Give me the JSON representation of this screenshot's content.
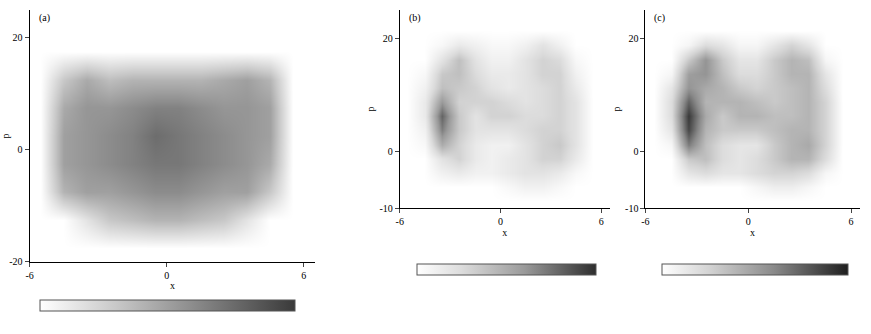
{
  "chart_data": [
    {
      "type": "heatmap",
      "title": "(a)",
      "x_label": "x",
      "y_label": "p",
      "x": [
        -5.5,
        -4.5,
        -3.5,
        -2.5,
        -1.5,
        -0.5,
        0.5,
        1.5,
        2.5,
        3.5,
        4.5,
        5.5
      ],
      "y": [
        -17.5,
        -12.5,
        -7.5,
        -2.5,
        2.5,
        7.5,
        12.5,
        17.5,
        22.5
      ],
      "z": [
        [
          0,
          0,
          0,
          0,
          0,
          0,
          0,
          0,
          0,
          0,
          0,
          0
        ],
        [
          0,
          0,
          0.15,
          0.3,
          0.35,
          0.4,
          0.4,
          0.35,
          0.3,
          0.15,
          0,
          0
        ],
        [
          0,
          0.4,
          0.5,
          0.5,
          0.55,
          0.6,
          0.6,
          0.55,
          0.5,
          0.5,
          0.3,
          0
        ],
        [
          0,
          0.5,
          0.55,
          0.6,
          0.65,
          0.7,
          0.7,
          0.65,
          0.6,
          0.55,
          0.45,
          0
        ],
        [
          0,
          0.5,
          0.55,
          0.6,
          0.65,
          0.75,
          0.7,
          0.65,
          0.6,
          0.55,
          0.5,
          0
        ],
        [
          0,
          0.45,
          0.55,
          0.55,
          0.6,
          0.65,
          0.65,
          0.6,
          0.55,
          0.55,
          0.5,
          0
        ],
        [
          0,
          0.3,
          0.45,
          0.35,
          0.4,
          0.4,
          0.4,
          0.4,
          0.45,
          0.5,
          0.4,
          0
        ],
        [
          0,
          0,
          0,
          0,
          0,
          0,
          0,
          0,
          0,
          0,
          0,
          0
        ],
        [
          0,
          0,
          0,
          0,
          0,
          0,
          0,
          0,
          0,
          0,
          0,
          0
        ]
      ],
      "xlim": [
        -6,
        6.5
      ],
      "ylim": [
        -20,
        25
      ],
      "xticks": [
        -6,
        0,
        6
      ],
      "yticks": [
        -20,
        0,
        20
      ],
      "zlim": [
        0,
        1
      ]
    },
    {
      "type": "heatmap",
      "title": "(b)",
      "x_label": "x",
      "y_label": "p",
      "x": [
        -5.5,
        -4.5,
        -3.5,
        -2.5,
        -1.5,
        -0.5,
        0.5,
        1.5,
        2.5,
        3.5,
        4.5,
        5.5
      ],
      "y": [
        -8.75,
        -6.25,
        -3.75,
        -1.25,
        1.25,
        3.75,
        6.25,
        8.75,
        11.25,
        13.75,
        16.25,
        18.75,
        21.25,
        23.75
      ],
      "z": [
        [
          0,
          0,
          0,
          0,
          0,
          0,
          0,
          0,
          0,
          0,
          0,
          0
        ],
        [
          0,
          0,
          0,
          0,
          0,
          0,
          0.05,
          0.1,
          0.1,
          0.05,
          0,
          0
        ],
        [
          0,
          0,
          0.1,
          0.15,
          0.1,
          0.1,
          0.15,
          0.2,
          0.2,
          0.15,
          0.05,
          0
        ],
        [
          0,
          0,
          0.2,
          0.3,
          0.15,
          0.1,
          0.15,
          0.2,
          0.3,
          0.3,
          0.15,
          0
        ],
        [
          0,
          0.05,
          0.5,
          0.3,
          0.15,
          0.1,
          0.1,
          0.2,
          0.3,
          0.35,
          0.2,
          0
        ],
        [
          0,
          0.1,
          0.7,
          0.35,
          0.2,
          0.2,
          0.2,
          0.25,
          0.3,
          0.3,
          0.2,
          0
        ],
        [
          0,
          0.15,
          0.8,
          0.35,
          0.2,
          0.3,
          0.3,
          0.25,
          0.25,
          0.3,
          0.2,
          0
        ],
        [
          0,
          0.15,
          0.6,
          0.3,
          0.3,
          0.3,
          0.25,
          0.2,
          0.25,
          0.3,
          0.2,
          0
        ],
        [
          0,
          0.1,
          0.4,
          0.35,
          0.3,
          0.2,
          0.15,
          0.2,
          0.25,
          0.3,
          0.15,
          0
        ],
        [
          0,
          0.05,
          0.35,
          0.4,
          0.25,
          0.15,
          0.15,
          0.2,
          0.3,
          0.3,
          0.1,
          0
        ],
        [
          0,
          0,
          0.2,
          0.4,
          0.2,
          0.1,
          0.1,
          0.2,
          0.3,
          0.25,
          0.05,
          0
        ],
        [
          0,
          0,
          0.05,
          0.15,
          0.1,
          0.05,
          0.05,
          0.1,
          0.2,
          0.1,
          0,
          0
        ],
        [
          0,
          0,
          0,
          0,
          0,
          0,
          0,
          0,
          0,
          0,
          0,
          0
        ],
        [
          0,
          0,
          0,
          0,
          0,
          0,
          0,
          0,
          0,
          0,
          0,
          0
        ]
      ],
      "xlim": [
        -6,
        6.5
      ],
      "ylim": [
        -10,
        25
      ],
      "xticks": [
        -6,
        0,
        6
      ],
      "yticks": [
        -10,
        0,
        20
      ],
      "zlim": [
        0,
        1
      ]
    },
    {
      "type": "heatmap",
      "title": "(c)",
      "x_label": "x",
      "y_label": "p",
      "x": [
        -5.5,
        -4.5,
        -3.5,
        -2.5,
        -1.5,
        -0.5,
        0.5,
        1.5,
        2.5,
        3.5,
        4.5,
        5.5
      ],
      "y": [
        -8.75,
        -6.25,
        -3.75,
        -1.25,
        1.25,
        3.75,
        6.25,
        8.75,
        11.25,
        13.75,
        16.25,
        18.75,
        21.25,
        23.75
      ],
      "z": [
        [
          0,
          0,
          0,
          0,
          0,
          0,
          0,
          0,
          0,
          0,
          0,
          0
        ],
        [
          0,
          0,
          0,
          0,
          0,
          0,
          0.05,
          0.1,
          0.1,
          0.05,
          0,
          0
        ],
        [
          0,
          0,
          0.15,
          0.2,
          0.15,
          0.15,
          0.2,
          0.25,
          0.25,
          0.2,
          0.05,
          0
        ],
        [
          0,
          0,
          0.3,
          0.35,
          0.2,
          0.15,
          0.2,
          0.3,
          0.4,
          0.4,
          0.2,
          0
        ],
        [
          0,
          0.05,
          0.65,
          0.35,
          0.2,
          0.15,
          0.15,
          0.3,
          0.4,
          0.45,
          0.25,
          0
        ],
        [
          0,
          0.15,
          0.85,
          0.4,
          0.3,
          0.3,
          0.3,
          0.35,
          0.4,
          0.4,
          0.25,
          0
        ],
        [
          0,
          0.2,
          0.9,
          0.45,
          0.3,
          0.4,
          0.4,
          0.35,
          0.35,
          0.4,
          0.25,
          0
        ],
        [
          0,
          0.2,
          0.75,
          0.4,
          0.4,
          0.4,
          0.35,
          0.3,
          0.35,
          0.4,
          0.25,
          0
        ],
        [
          0,
          0.15,
          0.55,
          0.45,
          0.4,
          0.3,
          0.25,
          0.3,
          0.35,
          0.4,
          0.2,
          0
        ],
        [
          0,
          0.05,
          0.5,
          0.55,
          0.35,
          0.2,
          0.2,
          0.3,
          0.4,
          0.4,
          0.15,
          0
        ],
        [
          0,
          0,
          0.3,
          0.55,
          0.3,
          0.15,
          0.15,
          0.3,
          0.4,
          0.35,
          0.05,
          0
        ],
        [
          0,
          0,
          0.05,
          0.2,
          0.15,
          0.05,
          0.05,
          0.15,
          0.25,
          0.15,
          0,
          0
        ],
        [
          0,
          0,
          0,
          0,
          0,
          0,
          0,
          0,
          0,
          0,
          0,
          0
        ],
        [
          0,
          0,
          0,
          0,
          0,
          0,
          0,
          0,
          0,
          0,
          0,
          0
        ]
      ],
      "xlim": [
        -6,
        6.5
      ],
      "ylim": [
        -10,
        25
      ],
      "xticks": [
        -6,
        0,
        6
      ],
      "yticks": [
        -10,
        0,
        20
      ],
      "zlim": [
        0,
        1
      ]
    }
  ]
}
